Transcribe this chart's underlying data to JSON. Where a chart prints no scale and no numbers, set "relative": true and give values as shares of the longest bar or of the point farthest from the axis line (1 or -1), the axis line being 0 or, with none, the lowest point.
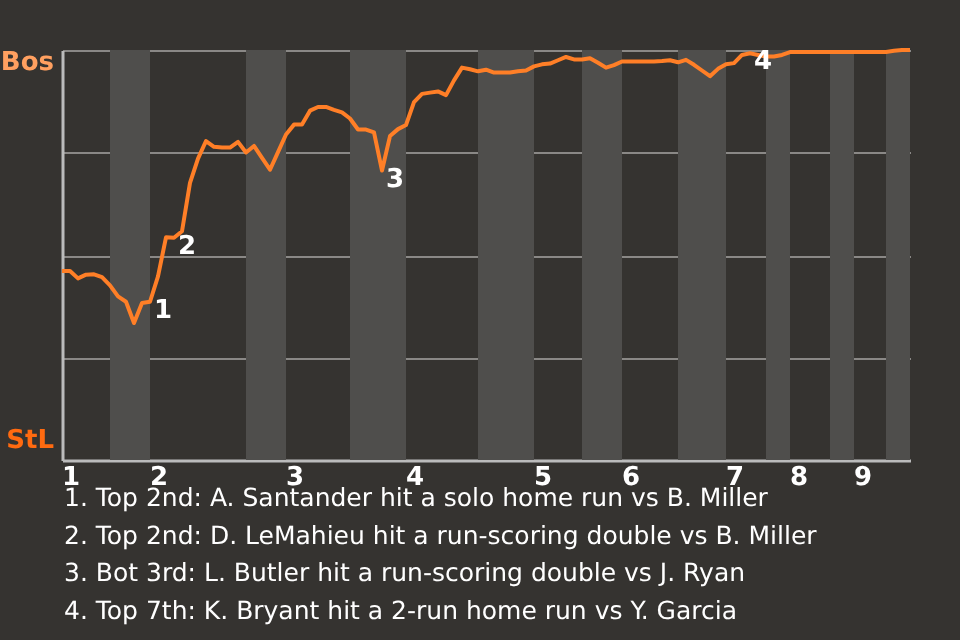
{
  "chart_data": {
    "type": "line",
    "relative": true,
    "categories": [
      null,
      "1",
      null,
      null,
      null,
      null,
      null,
      null,
      null,
      null,
      null,
      null,
      "2",
      null,
      null,
      null,
      null,
      null,
      null,
      null,
      null,
      null,
      null,
      null,
      null,
      null,
      null,
      null,
      null,
      "3",
      null,
      null,
      null,
      null,
      null,
      null,
      null,
      null,
      null,
      null,
      null,
      null,
      null,
      null,
      "4",
      null,
      null,
      null,
      null,
      null,
      null,
      null,
      null,
      null,
      null,
      null,
      null,
      null,
      null,
      null,
      "5",
      null,
      null,
      null,
      null,
      null,
      null,
      null,
      null,
      null,
      null,
      "6",
      null,
      null,
      null,
      null,
      null,
      null,
      null,
      null,
      null,
      null,
      null,
      null,
      "7",
      null,
      null,
      null,
      null,
      null,
      null,
      null,
      "8",
      null,
      null,
      null,
      null,
      null,
      null,
      null,
      "9",
      null,
      null,
      null,
      null,
      null,
      null
    ],
    "series": [
      {
        "color": "#ff7f27",
        "values": [
          0.461,
          0.461,
          0.443,
          0.452,
          0.453,
          0.446,
          0.426,
          0.399,
          0.386,
          0.334,
          0.383,
          0.386,
          0.448,
          0.543,
          0.542,
          0.558,
          0.676,
          0.735,
          0.778,
          0.764,
          0.762,
          0.762,
          0.776,
          0.75,
          0.766,
          0.737,
          0.708,
          0.751,
          0.794,
          0.818,
          0.818,
          0.852,
          0.861,
          0.861,
          0.854,
          0.848,
          0.833,
          0.806,
          0.806,
          0.799,
          0.706,
          0.79,
          0.807,
          0.817,
          0.873,
          0.893,
          0.896,
          0.899,
          0.89,
          0.926,
          0.957,
          0.953,
          0.948,
          0.952,
          0.945,
          0.945,
          0.945,
          0.948,
          0.95,
          0.96,
          0.965,
          0.967,
          0.975,
          0.983,
          0.977,
          0.977,
          0.98,
          0.969,
          0.957,
          0.963,
          0.972,
          0.972,
          0.972,
          0.972,
          0.972,
          0.973,
          0.975,
          0.97,
          0.976,
          0.964,
          0.95,
          0.936,
          0.954,
          0.965,
          0.968,
          0.988,
          0.992,
          0.988,
          0.984,
          0.984,
          0.988,
          0.995,
          0.995,
          0.995,
          0.995,
          0.995,
          0.995,
          0.995,
          0.995,
          0.995,
          0.995,
          0.995,
          0.995,
          0.995,
          0.998,
          1,
          1
        ]
      }
    ],
    "grid": "y",
    "annotations": [
      "Bos",
      "StL",
      "1",
      "2",
      "3",
      "4",
      "1. Top 2nd: A. Santander hit a solo home run vs B. Miller",
      "2. Top 2nd: D. LeMahieu hit a run-scoring double vs B. Miller",
      "3. Bot 3rd: L. Butler hit a run-scoring double vs J. Ryan",
      "4. Top 7th: K. Bryant hit a 2-run home run vs Y. Garcia"
    ]
  }
}
